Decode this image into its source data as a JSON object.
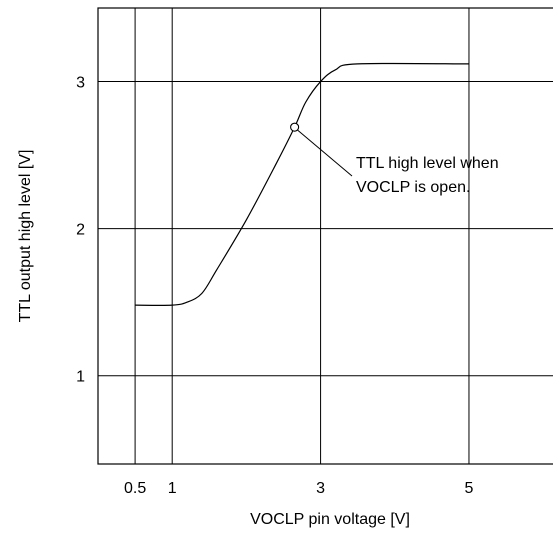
{
  "chart_data": {
    "type": "line",
    "title": "",
    "xlabel": "VOCLP pin voltage [V]",
    "ylabel": "TTL output high level [V]",
    "xlim": [
      0,
      6.2
    ],
    "ylim": [
      0.4,
      3.5
    ],
    "x_ticks": [
      0.5,
      1,
      3,
      5
    ],
    "x_tick_labels": [
      "0.5",
      "1",
      "3",
      "5"
    ],
    "y_ticks": [
      1,
      2,
      3
    ],
    "y_tick_labels": [
      "1",
      "2",
      "3"
    ],
    "grid": true,
    "series": [
      {
        "x": [
          0.5,
          1.0,
          1.2,
          1.4,
          1.6,
          2.0,
          2.4,
          2.65,
          2.8,
          3.0,
          3.2,
          3.5,
          5.0
        ],
        "y": [
          1.48,
          1.48,
          1.5,
          1.56,
          1.72,
          2.06,
          2.44,
          2.69,
          2.86,
          3.0,
          3.08,
          3.12,
          3.12
        ]
      }
    ],
    "annotations": [
      {
        "text_lines": [
          "TTL high level when",
          "VOCLP is open."
        ],
        "point": {
          "x": 2.65,
          "y": 2.69
        }
      }
    ]
  }
}
